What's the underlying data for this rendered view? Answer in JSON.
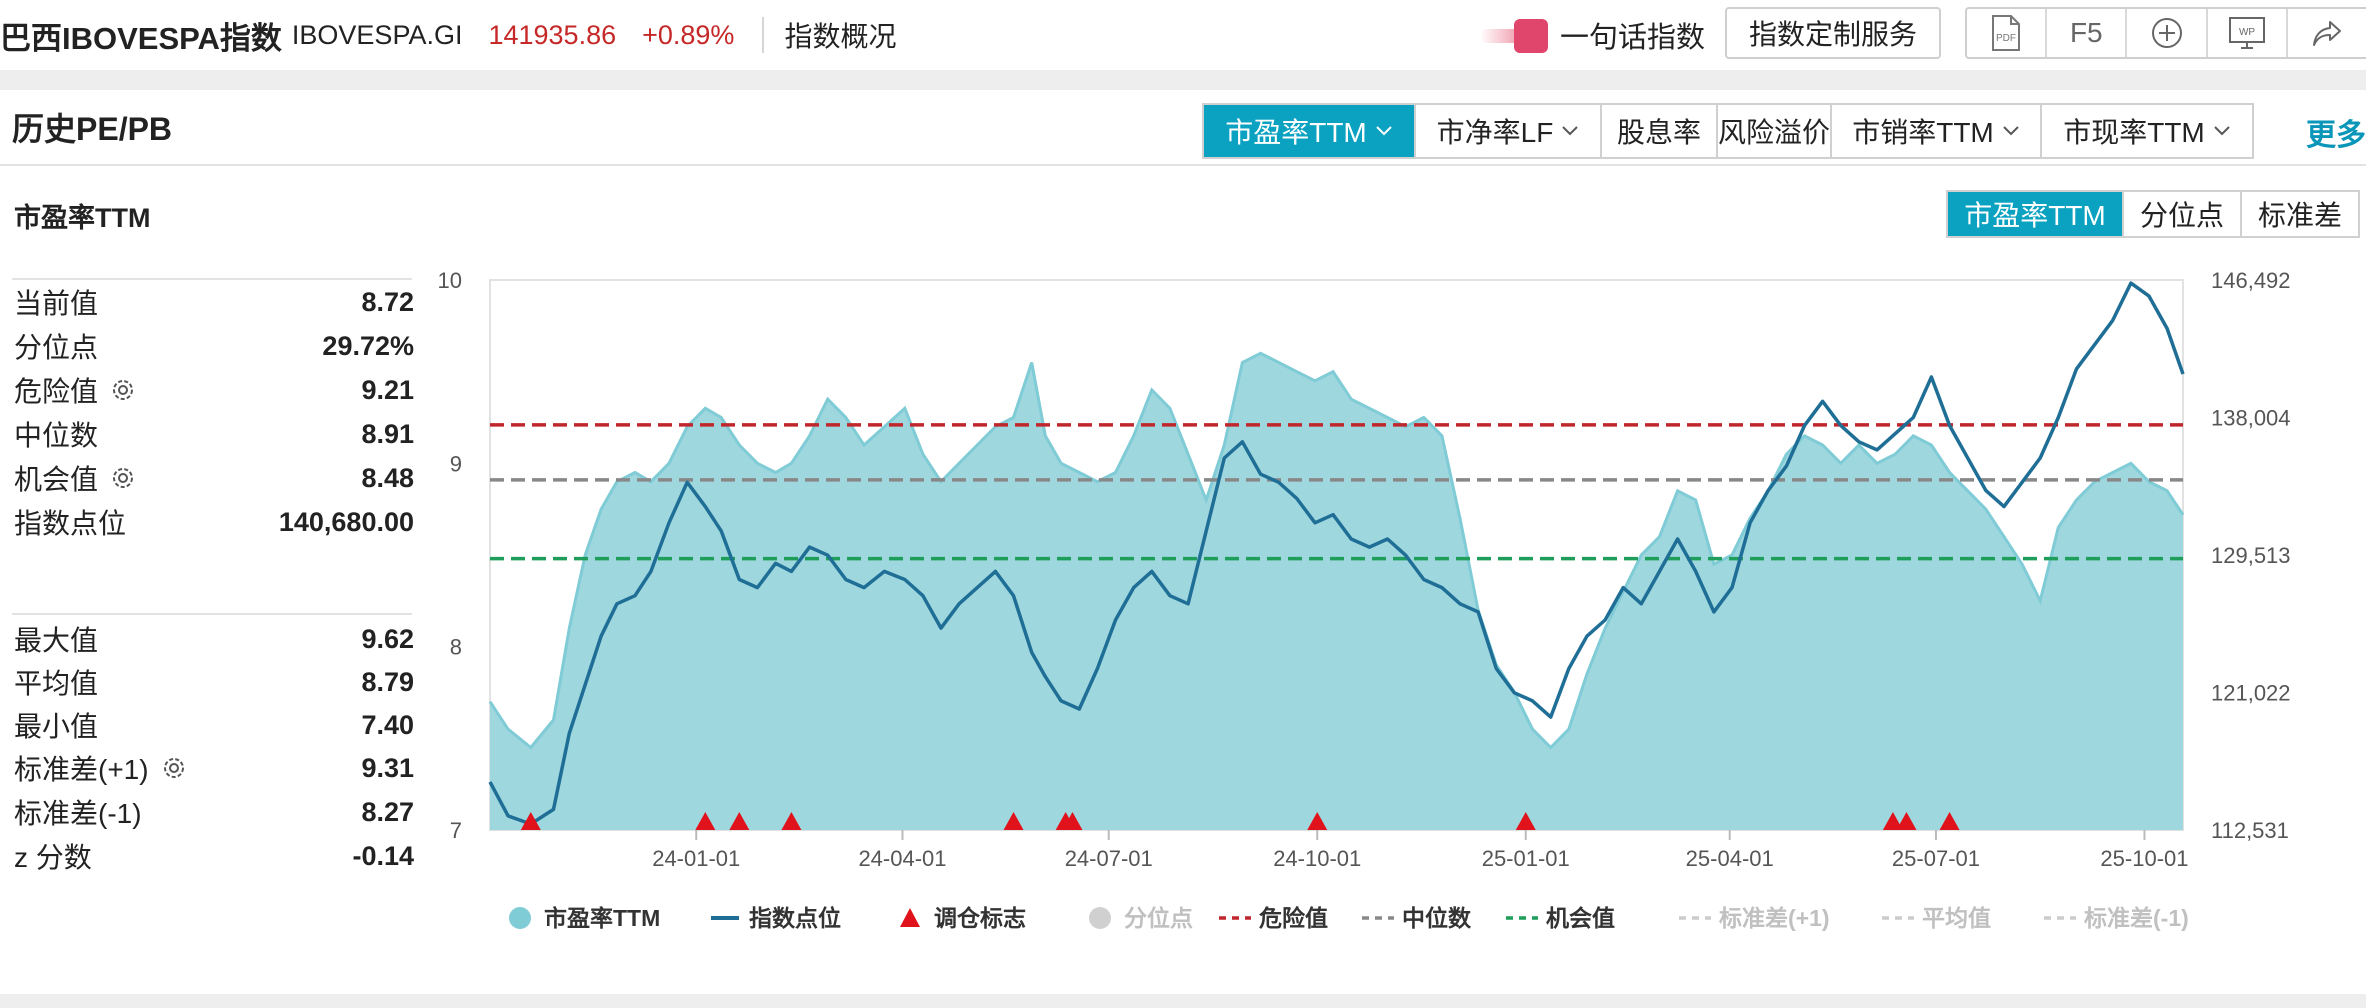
{
  "header": {
    "title": "巴西IBOVESPA指数",
    "code": "IBOVESPA.GI",
    "price": "141935.86",
    "change": "+0.89%",
    "overview": "指数概况",
    "brand_text": "一句话指数",
    "custom_service": "指数定制服务",
    "tool_pdf": "PDF",
    "tool_f5": "F5",
    "tool_wp": "WP"
  },
  "section": {
    "title": "历史PE/PB",
    "tabs": [
      "市盈率TTM",
      "市净率LF",
      "股息率",
      "风险溢价",
      "市销率TTM",
      "市现率TTM"
    ],
    "more": "更多"
  },
  "panel": {
    "subtitle": "市盈率TTM",
    "mode_tabs": [
      "市盈率TTM",
      "分位点",
      "标准差"
    ]
  },
  "stats": {
    "current_label": "当前值",
    "current": "8.72",
    "percentile_label": "分位点",
    "percentile": "29.72%",
    "danger_label": "危险值",
    "danger": "9.21",
    "median_label": "中位数",
    "median": "8.91",
    "chance_label": "机会值",
    "chance": "8.48",
    "index_label": "指数点位",
    "index": "140,680.00",
    "max_label": "最大值",
    "max": "9.62",
    "mean_label": "平均值",
    "mean": "8.79",
    "min_label": "最小值",
    "min": "7.40",
    "std_plus_label": "标准差(+1)",
    "std_plus": "9.31",
    "std_minus_label": "标准差(-1)",
    "std_minus": "8.27",
    "z_label": "z 分数",
    "z": "-0.14"
  },
  "colors": {
    "accent": "#0aa2c0",
    "pe_fill": "#9fd7df",
    "pe_line": "#7fcbd6",
    "index_line": "#1f6e96",
    "danger": "#c0272d",
    "median": "#888888",
    "chance": "#1e9e5a",
    "marker": "#e0121b",
    "up": "#c62828"
  },
  "chart_data": {
    "type": "area",
    "x_ticks": [
      "24-01-01",
      "24-04-01",
      "24-07-01",
      "24-10-01",
      "25-01-01",
      "25-04-01",
      "25-07-01",
      "25-10-01"
    ],
    "x_range": [
      "2023-10-02",
      "2025-10-18"
    ],
    "y_left_ticks": [
      "10",
      "9",
      "8",
      "7"
    ],
    "y_left_range": [
      7,
      10
    ],
    "y_right_ticks": [
      "146,492",
      "138,004",
      "129,513",
      "121,022",
      "112,531"
    ],
    "y_right_range": [
      112531,
      146492
    ],
    "reference_lines": [
      {
        "name": "危险值",
        "value": 9.21
      },
      {
        "name": "中位数",
        "value": 8.91
      },
      {
        "name": "机会值",
        "value": 8.48
      }
    ],
    "series": [
      {
        "name": "市盈率TTM",
        "axis": "left",
        "points": [
          [
            "2023-10-02",
            7.7
          ],
          [
            "2023-10-10",
            7.55
          ],
          [
            "2023-10-20",
            7.45
          ],
          [
            "2023-10-30",
            7.6
          ],
          [
            "2023-11-06",
            8.1
          ],
          [
            "2023-11-13",
            8.5
          ],
          [
            "2023-11-20",
            8.75
          ],
          [
            "2023-11-27",
            8.9
          ],
          [
            "2023-12-05",
            8.95
          ],
          [
            "2023-12-12",
            8.9
          ],
          [
            "2023-12-20",
            9.0
          ],
          [
            "2023-12-28",
            9.2
          ],
          [
            "2024-01-05",
            9.3
          ],
          [
            "2024-01-12",
            9.25
          ],
          [
            "2024-01-20",
            9.1
          ],
          [
            "2024-01-28",
            9.0
          ],
          [
            "2024-02-05",
            8.95
          ],
          [
            "2024-02-12",
            9.0
          ],
          [
            "2024-02-20",
            9.15
          ],
          [
            "2024-02-28",
            9.35
          ],
          [
            "2024-03-07",
            9.25
          ],
          [
            "2024-03-15",
            9.1
          ],
          [
            "2024-03-24",
            9.2
          ],
          [
            "2024-04-02",
            9.3
          ],
          [
            "2024-04-10",
            9.05
          ],
          [
            "2024-04-18",
            8.9
          ],
          [
            "2024-04-26",
            9.0
          ],
          [
            "2024-05-04",
            9.1
          ],
          [
            "2024-05-12",
            9.2
          ],
          [
            "2024-05-20",
            9.25
          ],
          [
            "2024-05-28",
            9.55
          ],
          [
            "2024-06-03",
            9.15
          ],
          [
            "2024-06-10",
            9.0
          ],
          [
            "2024-06-18",
            8.95
          ],
          [
            "2024-06-26",
            8.9
          ],
          [
            "2024-07-04",
            8.95
          ],
          [
            "2024-07-12",
            9.15
          ],
          [
            "2024-07-20",
            9.4
          ],
          [
            "2024-07-28",
            9.3
          ],
          [
            "2024-08-05",
            9.05
          ],
          [
            "2024-08-13",
            8.8
          ],
          [
            "2024-08-21",
            9.1
          ],
          [
            "2024-08-29",
            9.55
          ],
          [
            "2024-09-06",
            9.6
          ],
          [
            "2024-09-14",
            9.55
          ],
          [
            "2024-09-22",
            9.5
          ],
          [
            "2024-09-30",
            9.45
          ],
          [
            "2024-10-08",
            9.5
          ],
          [
            "2024-10-16",
            9.35
          ],
          [
            "2024-10-24",
            9.3
          ],
          [
            "2024-11-01",
            9.25
          ],
          [
            "2024-11-09",
            9.2
          ],
          [
            "2024-11-17",
            9.25
          ],
          [
            "2024-11-25",
            9.15
          ],
          [
            "2024-12-03",
            8.7
          ],
          [
            "2024-12-11",
            8.2
          ],
          [
            "2024-12-19",
            7.9
          ],
          [
            "2024-12-27",
            7.75
          ],
          [
            "2025-01-04",
            7.55
          ],
          [
            "2025-01-12",
            7.45
          ],
          [
            "2025-01-20",
            7.55
          ],
          [
            "2025-01-28",
            7.85
          ],
          [
            "2025-02-05",
            8.1
          ],
          [
            "2025-02-13",
            8.3
          ],
          [
            "2025-02-21",
            8.5
          ],
          [
            "2025-03-01",
            8.6
          ],
          [
            "2025-03-09",
            8.85
          ],
          [
            "2025-03-17",
            8.8
          ],
          [
            "2025-03-25",
            8.45
          ],
          [
            "2025-04-02",
            8.5
          ],
          [
            "2025-04-10",
            8.7
          ],
          [
            "2025-04-18",
            8.85
          ],
          [
            "2025-04-26",
            9.05
          ],
          [
            "2025-05-04",
            9.15
          ],
          [
            "2025-05-12",
            9.1
          ],
          [
            "2025-05-20",
            9.0
          ],
          [
            "2025-05-28",
            9.1
          ],
          [
            "2025-06-05",
            9.0
          ],
          [
            "2025-06-13",
            9.05
          ],
          [
            "2025-06-21",
            9.15
          ],
          [
            "2025-06-29",
            9.1
          ],
          [
            "2025-07-07",
            8.95
          ],
          [
            "2025-07-15",
            8.85
          ],
          [
            "2025-07-23",
            8.75
          ],
          [
            "2025-07-31",
            8.6
          ],
          [
            "2025-08-08",
            8.45
          ],
          [
            "2025-08-16",
            8.25
          ],
          [
            "2025-08-24",
            8.65
          ],
          [
            "2025-09-01",
            8.8
          ],
          [
            "2025-09-09",
            8.9
          ],
          [
            "2025-09-17",
            8.95
          ],
          [
            "2025-09-25",
            9.0
          ],
          [
            "2025-10-03",
            8.9
          ],
          [
            "2025-10-11",
            8.85
          ],
          [
            "2025-10-18",
            8.72
          ]
        ]
      },
      {
        "name": "指数点位",
        "axis": "right",
        "points": [
          [
            "2023-10-02",
            115500
          ],
          [
            "2023-10-10",
            113400
          ],
          [
            "2023-10-20",
            112900
          ],
          [
            "2023-10-30",
            113800
          ],
          [
            "2023-11-06",
            118500
          ],
          [
            "2023-11-13",
            121500
          ],
          [
            "2023-11-20",
            124500
          ],
          [
            "2023-11-27",
            126500
          ],
          [
            "2023-12-05",
            127000
          ],
          [
            "2023-12-12",
            128500
          ],
          [
            "2023-12-20",
            131500
          ],
          [
            "2023-12-28",
            134000
          ],
          [
            "2024-01-05",
            132500
          ],
          [
            "2024-01-12",
            131000
          ],
          [
            "2024-01-20",
            128000
          ],
          [
            "2024-01-28",
            127500
          ],
          [
            "2024-02-05",
            129000
          ],
          [
            "2024-02-12",
            128500
          ],
          [
            "2024-02-20",
            130000
          ],
          [
            "2024-02-28",
            129500
          ],
          [
            "2024-03-07",
            128000
          ],
          [
            "2024-03-15",
            127500
          ],
          [
            "2024-03-24",
            128500
          ],
          [
            "2024-04-02",
            128000
          ],
          [
            "2024-04-10",
            127000
          ],
          [
            "2024-04-18",
            125000
          ],
          [
            "2024-04-26",
            126500
          ],
          [
            "2024-05-04",
            127500
          ],
          [
            "2024-05-12",
            128500
          ],
          [
            "2024-05-20",
            127000
          ],
          [
            "2024-05-28",
            123500
          ],
          [
            "2024-06-03",
            122000
          ],
          [
            "2024-06-10",
            120500
          ],
          [
            "2024-06-18",
            120000
          ],
          [
            "2024-06-26",
            122500
          ],
          [
            "2024-07-04",
            125500
          ],
          [
            "2024-07-12",
            127500
          ],
          [
            "2024-07-20",
            128500
          ],
          [
            "2024-07-28",
            127000
          ],
          [
            "2024-08-05",
            126500
          ],
          [
            "2024-08-13",
            131000
          ],
          [
            "2024-08-21",
            135500
          ],
          [
            "2024-08-29",
            136500
          ],
          [
            "2024-09-06",
            134500
          ],
          [
            "2024-09-14",
            134000
          ],
          [
            "2024-09-22",
            133000
          ],
          [
            "2024-09-30",
            131500
          ],
          [
            "2024-10-08",
            132000
          ],
          [
            "2024-10-16",
            130500
          ],
          [
            "2024-10-24",
            130000
          ],
          [
            "2024-11-01",
            130500
          ],
          [
            "2024-11-09",
            129500
          ],
          [
            "2024-11-17",
            128000
          ],
          [
            "2024-11-25",
            127500
          ],
          [
            "2024-12-03",
            126500
          ],
          [
            "2024-12-11",
            126000
          ],
          [
            "2024-12-19",
            122500
          ],
          [
            "2024-12-27",
            121000
          ],
          [
            "2025-01-04",
            120500
          ],
          [
            "2025-01-12",
            119500
          ],
          [
            "2025-01-20",
            122500
          ],
          [
            "2025-01-28",
            124500
          ],
          [
            "2025-02-05",
            125500
          ],
          [
            "2025-02-13",
            127500
          ],
          [
            "2025-02-21",
            126500
          ],
          [
            "2025-03-01",
            128500
          ],
          [
            "2025-03-09",
            130500
          ],
          [
            "2025-03-17",
            128500
          ],
          [
            "2025-03-25",
            126000
          ],
          [
            "2025-04-02",
            127500
          ],
          [
            "2025-04-10",
            131500
          ],
          [
            "2025-04-18",
            133500
          ],
          [
            "2025-04-26",
            135000
          ],
          [
            "2025-05-04",
            137500
          ],
          [
            "2025-05-12",
            139000
          ],
          [
            "2025-05-20",
            137500
          ],
          [
            "2025-05-28",
            136500
          ],
          [
            "2025-06-05",
            136000
          ],
          [
            "2025-06-13",
            137000
          ],
          [
            "2025-06-21",
            138000
          ],
          [
            "2025-06-29",
            140500
          ],
          [
            "2025-07-07",
            137500
          ],
          [
            "2025-07-15",
            135500
          ],
          [
            "2025-07-23",
            133500
          ],
          [
            "2025-07-31",
            132500
          ],
          [
            "2025-08-08",
            134000
          ],
          [
            "2025-08-16",
            135500
          ],
          [
            "2025-08-24",
            138000
          ],
          [
            "2025-09-01",
            141000
          ],
          [
            "2025-09-09",
            142500
          ],
          [
            "2025-09-17",
            144000
          ],
          [
            "2025-09-25",
            146300
          ],
          [
            "2025-10-03",
            145500
          ],
          [
            "2025-10-11",
            143500
          ],
          [
            "2025-10-18",
            140680
          ]
        ]
      }
    ],
    "rebalance_markers": [
      "2023-10-20",
      "2024-01-05",
      "2024-01-20",
      "2024-02-12",
      "2024-05-20",
      "2024-06-12",
      "2024-06-15",
      "2024-10-01",
      "2025-01-01",
      "2025-06-12",
      "2025-06-18",
      "2025-07-07"
    ],
    "legend": [
      {
        "label": "市盈率TTM",
        "shape": "circle",
        "state": "on"
      },
      {
        "label": "指数点位",
        "shape": "line",
        "state": "on"
      },
      {
        "label": "调仓标志",
        "shape": "triangle",
        "state": "on"
      },
      {
        "label": "分位点",
        "shape": "circle",
        "state": "off"
      },
      {
        "label": "危险值",
        "shape": "dash",
        "state": "on"
      },
      {
        "label": "中位数",
        "shape": "dash",
        "state": "on"
      },
      {
        "label": "机会值",
        "shape": "dash",
        "state": "on"
      },
      {
        "label": "标准差(+1)",
        "shape": "dash",
        "state": "off"
      },
      {
        "label": "平均值",
        "shape": "dash",
        "state": "off"
      },
      {
        "label": "标准差(-1)",
        "shape": "dash",
        "state": "off"
      }
    ]
  }
}
